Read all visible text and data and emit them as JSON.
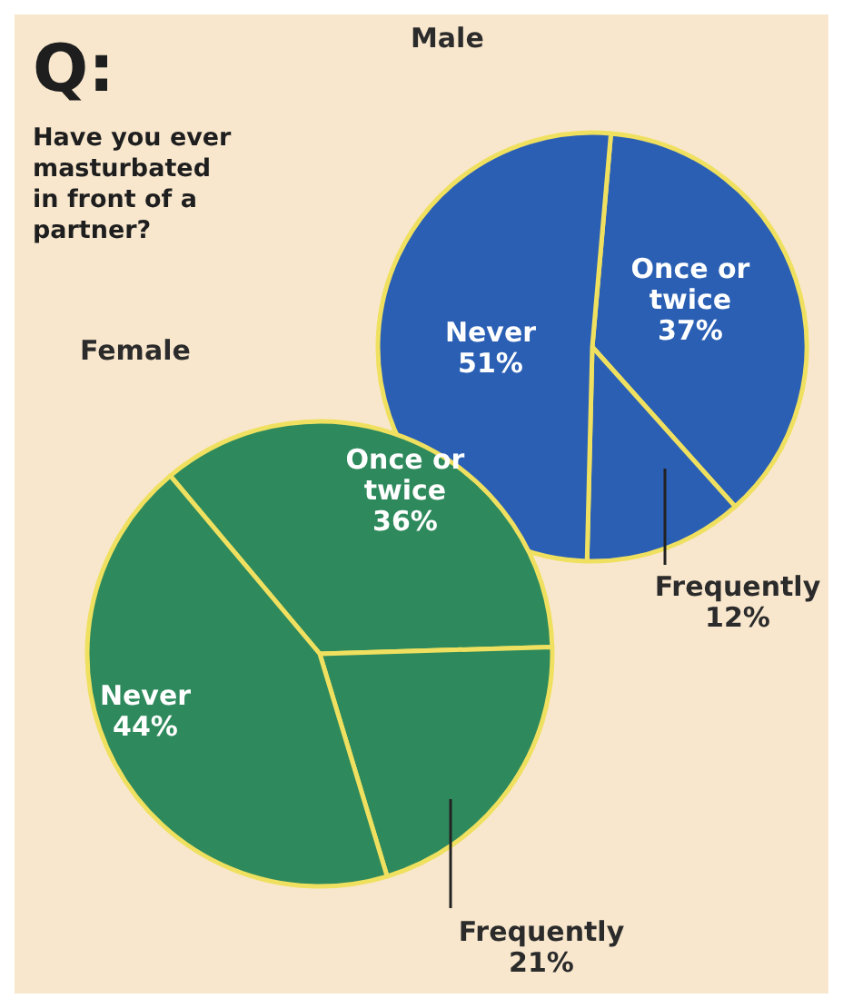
{
  "chart_data": [
    {
      "type": "pie",
      "title": "Male",
      "annotations": [
        "Q:",
        "Have you ever masturbated in front of a partner?"
      ],
      "categories": [
        "Once or twice",
        "Frequently",
        "Never"
      ],
      "values": [
        37,
        12,
        51
      ],
      "value_labels": [
        "37%",
        "12%",
        "51%"
      ],
      "colors": [
        "#2a5fb4",
        "#2a5fb4",
        "#2a5fb4"
      ]
    },
    {
      "type": "pie",
      "title": "Female",
      "categories": [
        "Once or twice",
        "Frequently",
        "Never"
      ],
      "values": [
        36,
        21,
        44
      ],
      "value_labels": [
        "36%",
        "21%",
        "44%"
      ],
      "colors": [
        "#2e8a5c",
        "#2e8a5c",
        "#2e8a5c"
      ]
    }
  ]
}
